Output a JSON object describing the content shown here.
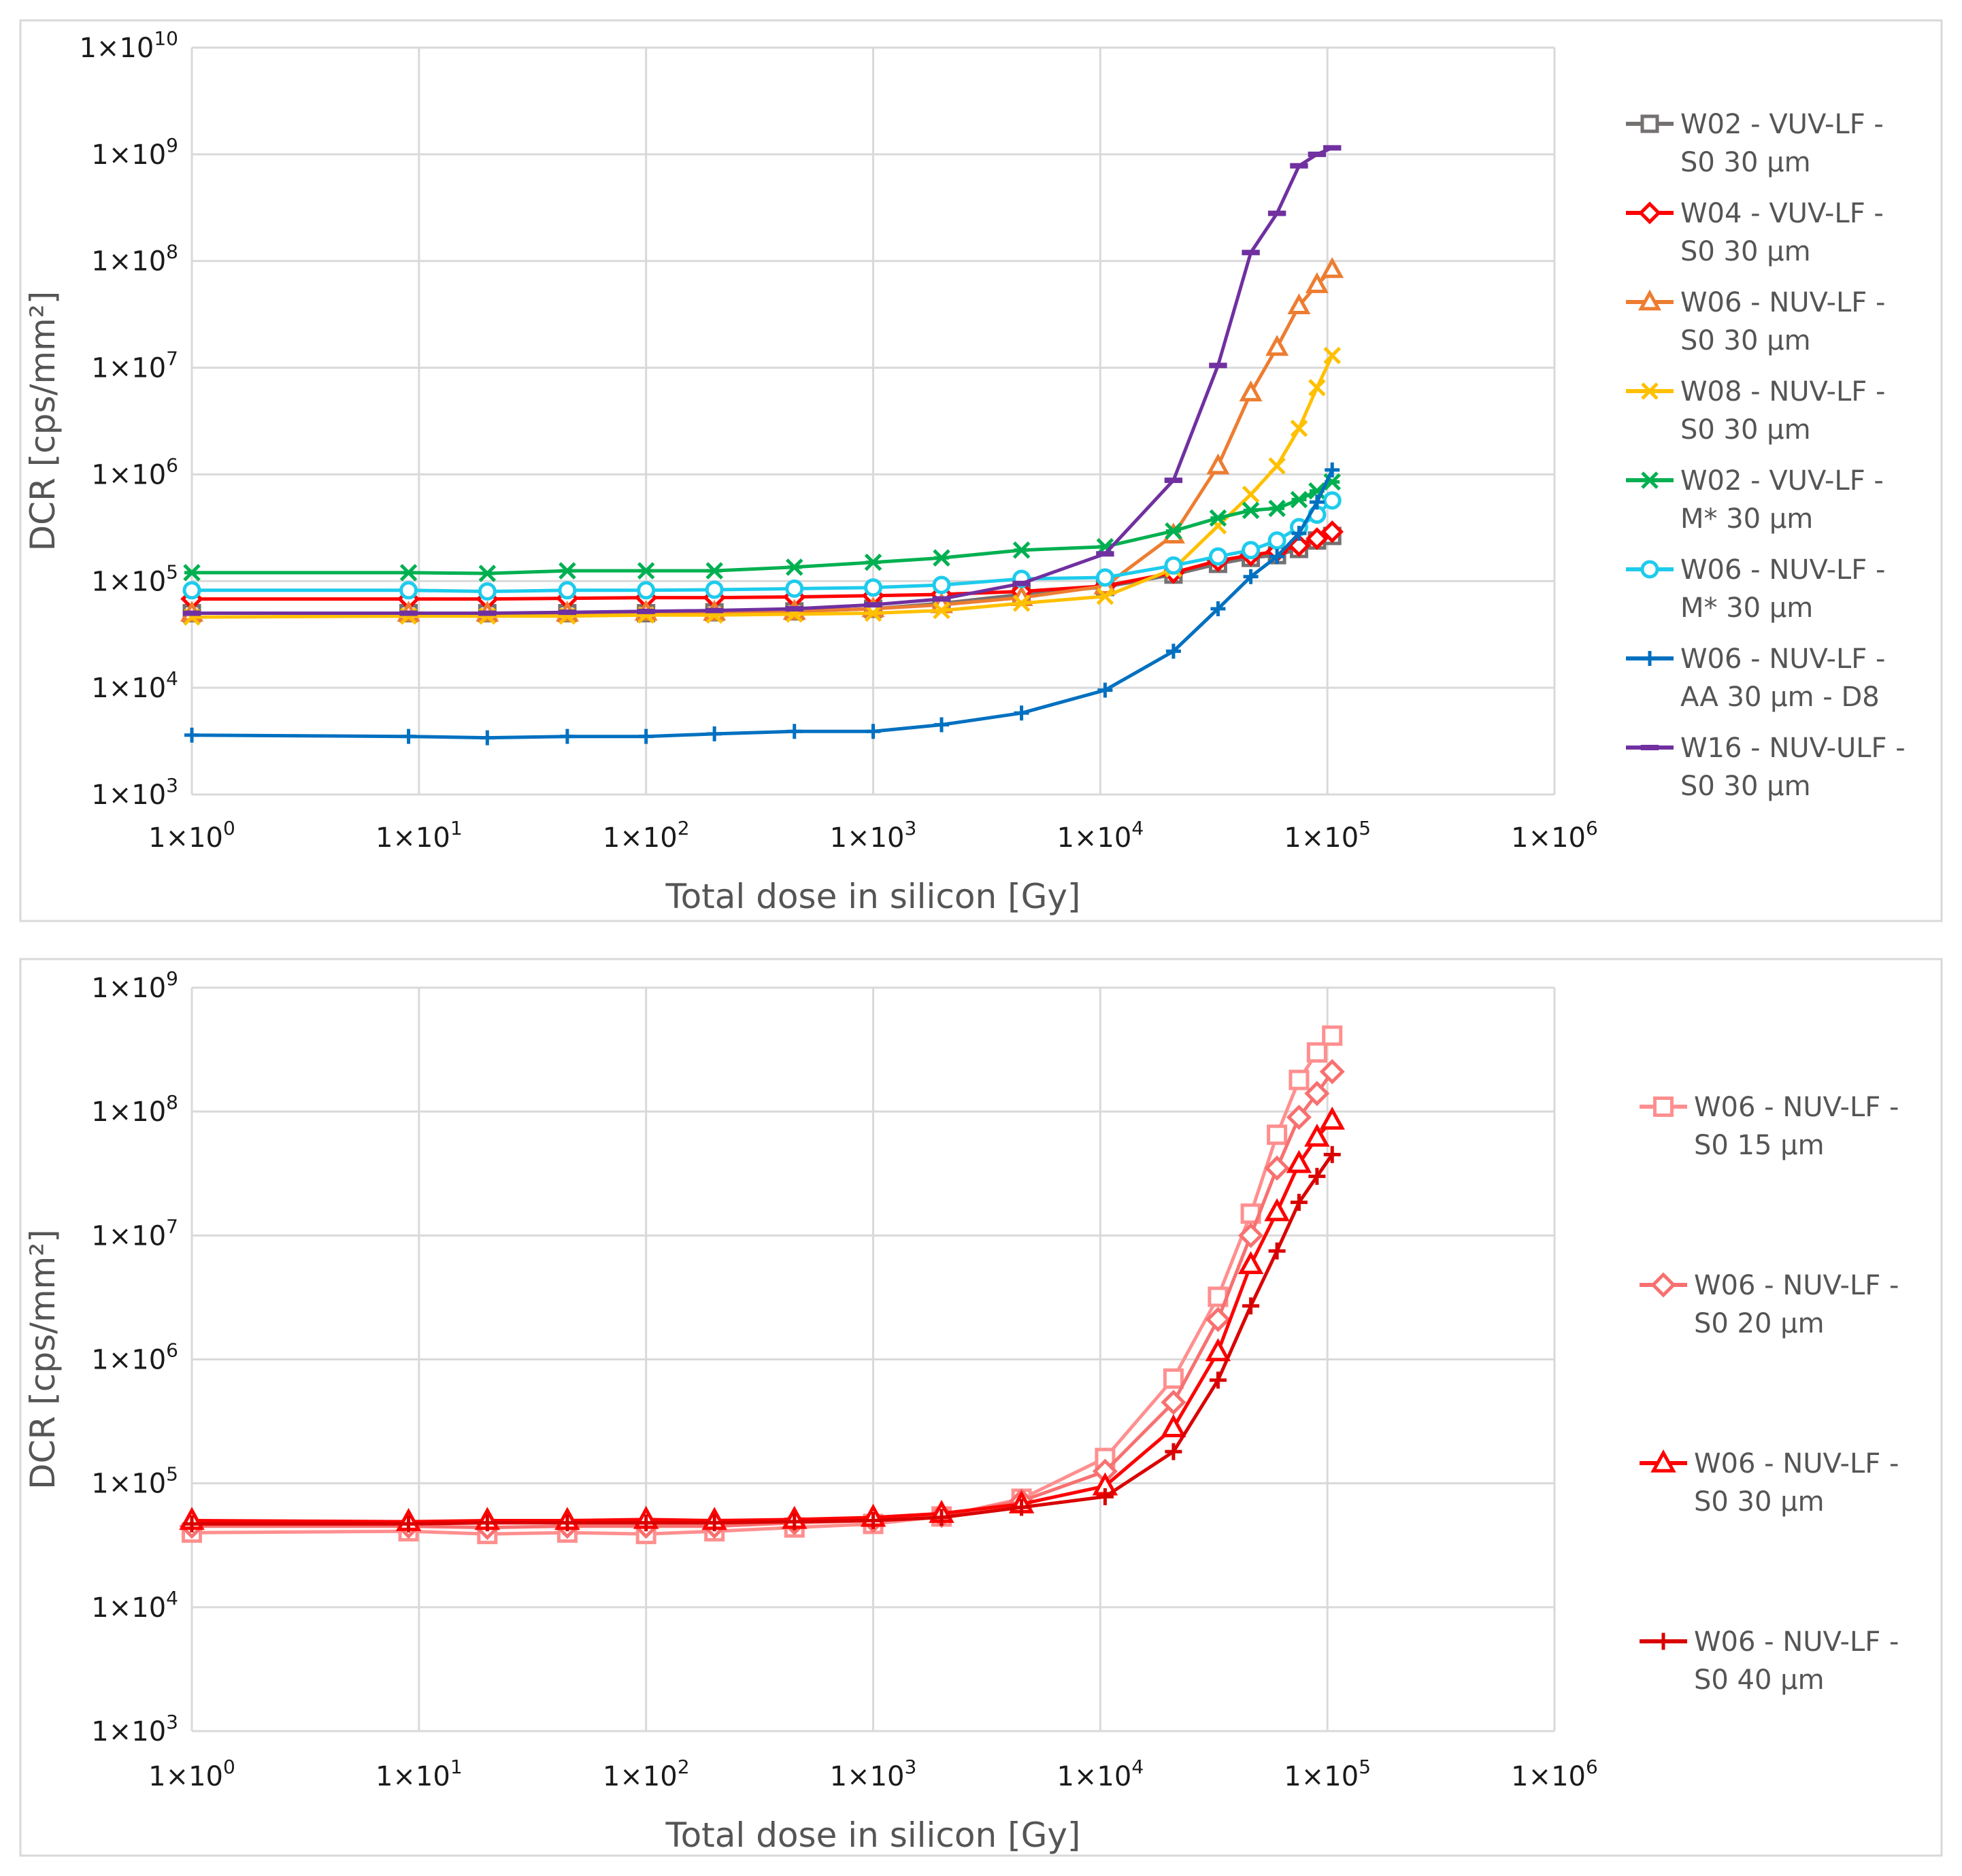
{
  "chart_data": [
    {
      "type": "line",
      "title": "",
      "xlabel": "Total dose in silicon [Gy]",
      "ylabel": "DCR [cps/mm²]",
      "xscale": "log",
      "yscale": "log",
      "xlim": [
        1,
        1000000
      ],
      "ylim": [
        1000,
        10000000000
      ],
      "grid": true,
      "legend": "right",
      "x_ticks": [
        {
          "base": "1×10",
          "exp": "0"
        },
        {
          "base": "1×10",
          "exp": "1"
        },
        {
          "base": "1×10",
          "exp": "2"
        },
        {
          "base": "1×10",
          "exp": "3"
        },
        {
          "base": "1×10",
          "exp": "4"
        },
        {
          "base": "1×10",
          "exp": "5"
        },
        {
          "base": "1×10",
          "exp": "6"
        }
      ],
      "y_ticks": [
        {
          "base": "1×10",
          "exp": "3"
        },
        {
          "base": "1×10",
          "exp": "4"
        },
        {
          "base": "1×10",
          "exp": "5"
        },
        {
          "base": "1×10",
          "exp": "6"
        },
        {
          "base": "1×10",
          "exp": "7"
        },
        {
          "base": "1×10",
          "exp": "8"
        },
        {
          "base": "1×10",
          "exp": "9"
        },
        {
          "base": "1×10",
          "exp": "10"
        }
      ],
      "series": [
        {
          "name": "W02 - VUV-LF - S0 30 µm",
          "label_lines": [
            "W02 - VUV-LF -",
            "S0 30 µm"
          ],
          "color": "#767171",
          "marker": "square",
          "x": [
            1,
            9,
            20,
            45,
            100,
            200,
            450,
            1000,
            2000,
            4500,
            10500,
            21000,
            33000,
            46000,
            60000,
            75000,
            90000,
            105000
          ],
          "y": [
            50000,
            50000,
            50000,
            50000,
            50000,
            51000,
            52000,
            55000,
            62000,
            75000,
            88000,
            115000,
            145000,
            165000,
            175000,
            200000,
            240000,
            265000
          ]
        },
        {
          "name": "W04 - VUV-LF - S0 30 µm",
          "label_lines": [
            "W04 - VUV-LF -",
            "S0 30 µm"
          ],
          "color": "#ff0000",
          "marker": "diamond",
          "x": [
            1,
            9,
            20,
            45,
            100,
            200,
            450,
            1000,
            2000,
            4500,
            10500,
            21000,
            33000,
            46000,
            60000,
            75000,
            90000,
            105000
          ],
          "y": [
            68000,
            68000,
            68000,
            69000,
            70000,
            70000,
            71000,
            73000,
            75000,
            80000,
            90000,
            120000,
            155000,
            175000,
            190000,
            215000,
            250000,
            290000
          ]
        },
        {
          "name": "W06 - NUV-LF - S0 30 µm",
          "label_lines": [
            "W06 - NUV-LF -",
            "S0 30 µm"
          ],
          "color": "#ed7d31",
          "marker": "triangle",
          "x": [
            1,
            9,
            20,
            45,
            100,
            200,
            450,
            1000,
            2000,
            4500,
            10500,
            21000,
            33000,
            46000,
            60000,
            75000,
            90000,
            105000
          ],
          "y": [
            50000,
            50000,
            50000,
            50000,
            51000,
            51000,
            52000,
            55000,
            60000,
            70000,
            90000,
            270000,
            1200000,
            5800000,
            15500000,
            38000000,
            60000000,
            83000000
          ]
        },
        {
          "name": "W08 - NUV-LF - S0 30 µm",
          "label_lines": [
            "W08 - NUV-LF -",
            "S0 30 µm"
          ],
          "color": "#ffc000",
          "marker": "x",
          "x": [
            1,
            9,
            20,
            45,
            100,
            200,
            450,
            1000,
            2000,
            4500,
            10500,
            21000,
            33000,
            46000,
            60000,
            75000,
            90000,
            105000
          ],
          "y": [
            46000,
            47000,
            47000,
            47000,
            48000,
            48000,
            49000,
            50000,
            53000,
            62000,
            72000,
            130000,
            330000,
            650000,
            1200000,
            2700000,
            6500000,
            13000000
          ]
        },
        {
          "name": "W02 - VUV-LF - M* 30 µm",
          "label_lines": [
            "W02 - VUV-LF -",
            "M* 30 µm"
          ],
          "color": "#00b050",
          "marker": "asterisk",
          "x": [
            1,
            9,
            20,
            45,
            100,
            200,
            450,
            1000,
            2000,
            4500,
            10500,
            21000,
            33000,
            46000,
            60000,
            75000,
            90000,
            105000
          ],
          "y": [
            120000,
            120000,
            118000,
            125000,
            125000,
            125000,
            135000,
            150000,
            165000,
            195000,
            210000,
            295000,
            390000,
            460000,
            480000,
            580000,
            700000,
            850000
          ]
        },
        {
          "name": "W06 - NUV-LF - M* 30 µm",
          "label_lines": [
            "W06 - NUV-LF -",
            "M* 30 µm"
          ],
          "color": "#1ecbec",
          "marker": "circle",
          "x": [
            1,
            9,
            20,
            45,
            100,
            200,
            450,
            1000,
            2000,
            4500,
            10500,
            21000,
            33000,
            46000,
            60000,
            75000,
            90000,
            105000
          ],
          "y": [
            82000,
            82000,
            80000,
            82000,
            82000,
            83000,
            85000,
            87000,
            92000,
            105000,
            108000,
            140000,
            170000,
            195000,
            240000,
            320000,
            420000,
            570000
          ]
        },
        {
          "name": "W06 - NUV-LF - AA 30 µm - D8",
          "label_lines": [
            "W06 - NUV-LF -",
            "AA 30 µm - D8"
          ],
          "color": "#0070c0",
          "marker": "plus",
          "x": [
            1,
            9,
            20,
            45,
            100,
            200,
            450,
            1000,
            2000,
            4500,
            10500,
            21000,
            33000,
            46000,
            60000,
            75000,
            90000,
            105000
          ],
          "y": [
            3600,
            3500,
            3400,
            3500,
            3500,
            3700,
            3900,
            3900,
            4500,
            5800,
            9500,
            22000,
            55000,
            110000,
            170000,
            280000,
            550000,
            1100000
          ]
        },
        {
          "name": "W16 - NUV-ULF - S0 30 µm",
          "label_lines": [
            "W16 - NUV-ULF -",
            "S0 30 µm"
          ],
          "color": "#7030a0",
          "marker": "dash",
          "x": [
            1,
            9,
            20,
            45,
            100,
            200,
            450,
            1000,
            2000,
            4500,
            10500,
            21000,
            33000,
            46000,
            60000,
            75000,
            90000,
            105000
          ],
          "y": [
            50000,
            50000,
            50000,
            51000,
            52000,
            53000,
            55000,
            60000,
            68000,
            95000,
            180000,
            880000,
            10500000,
            120000000,
            280000000,
            780000000,
            1000000000,
            1150000000
          ]
        }
      ]
    },
    {
      "type": "line",
      "title": "",
      "xlabel": "Total dose in silicon [Gy]",
      "ylabel": "DCR [cps/mm²]",
      "xscale": "log",
      "yscale": "log",
      "xlim": [
        1,
        1000000
      ],
      "ylim": [
        1000,
        1000000000
      ],
      "grid": true,
      "legend": "right",
      "x_ticks": [
        {
          "base": "1×10",
          "exp": "0"
        },
        {
          "base": "1×10",
          "exp": "1"
        },
        {
          "base": "1×10",
          "exp": "2"
        },
        {
          "base": "1×10",
          "exp": "3"
        },
        {
          "base": "1×10",
          "exp": "4"
        },
        {
          "base": "1×10",
          "exp": "5"
        },
        {
          "base": "1×10",
          "exp": "6"
        }
      ],
      "y_ticks": [
        {
          "base": "1×10",
          "exp": "3"
        },
        {
          "base": "1×10",
          "exp": "4"
        },
        {
          "base": "1×10",
          "exp": "5"
        },
        {
          "base": "1×10",
          "exp": "6"
        },
        {
          "base": "1×10",
          "exp": "7"
        },
        {
          "base": "1×10",
          "exp": "8"
        },
        {
          "base": "1×10",
          "exp": "9"
        }
      ],
      "series": [
        {
          "name": "W06 - NUV-LF - S0 15 µm",
          "label_lines": [
            "W06 - NUV-LF -",
            "S0 15 µm"
          ],
          "color": "#ff8f8f",
          "marker": "square",
          "x": [
            1,
            9,
            20,
            45,
            100,
            200,
            450,
            1000,
            2000,
            4500,
            10500,
            21000,
            33000,
            46000,
            60000,
            75000,
            90000,
            105000
          ],
          "y": [
            40000,
            41000,
            39000,
            40000,
            39000,
            41000,
            44000,
            47000,
            54000,
            75000,
            160000,
            700000,
            3200000,
            15000000,
            65000000,
            180000000,
            300000000,
            410000000
          ]
        },
        {
          "name": "W06 - NUV-LF - S0 20 µm",
          "label_lines": [
            "W06 - NUV-LF -",
            "S0 20 µm"
          ],
          "color": "#f87070",
          "marker": "diamond",
          "x": [
            1,
            9,
            20,
            45,
            100,
            200,
            450,
            1000,
            2000,
            4500,
            10500,
            21000,
            33000,
            46000,
            60000,
            75000,
            90000,
            105000
          ],
          "y": [
            45000,
            45000,
            44000,
            45000,
            45000,
            45000,
            48000,
            50000,
            55000,
            72000,
            125000,
            450000,
            2100000,
            10000000,
            35000000,
            90000000,
            140000000,
            210000000
          ]
        },
        {
          "name": "W06 - NUV-LF - S0 30 µm",
          "label_lines": [
            "W06 - NUV-LF -",
            "S0 30 µm"
          ],
          "color": "#ff0000",
          "marker": "triangle",
          "x": [
            1,
            9,
            20,
            45,
            100,
            200,
            450,
            1000,
            2000,
            4500,
            10500,
            21000,
            33000,
            46000,
            60000,
            75000,
            90000,
            105000
          ],
          "y": [
            50000,
            49000,
            50000,
            50000,
            51000,
            50000,
            51000,
            53000,
            57000,
            68000,
            95000,
            280000,
            1150000,
            5800000,
            15500000,
            38000000,
            62000000,
            85000000
          ]
        },
        {
          "name": "W06 - NUV-LF - S0 40 µm",
          "label_lines": [
            "W06 - NUV-LF -",
            "S0 40 µm"
          ],
          "color": "#d90000",
          "marker": "plus",
          "x": [
            1,
            9,
            20,
            45,
            100,
            200,
            450,
            1000,
            2000,
            4500,
            10500,
            21000,
            33000,
            46000,
            60000,
            75000,
            90000,
            105000
          ],
          "y": [
            47000,
            47000,
            48000,
            48000,
            48000,
            48000,
            49000,
            50000,
            53000,
            64000,
            78000,
            180000,
            680000,
            2700000,
            7500000,
            18500000,
            30000000,
            45000000
          ]
        }
      ]
    }
  ]
}
